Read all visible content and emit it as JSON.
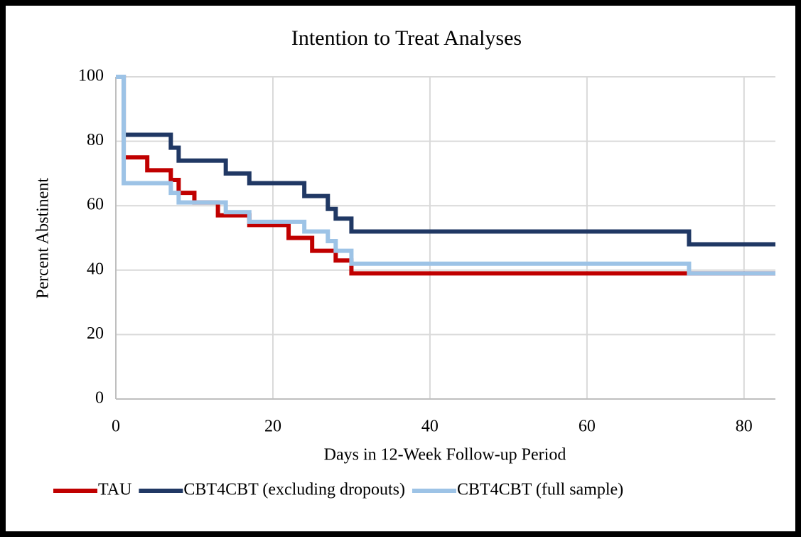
{
  "chart_data": {
    "type": "line",
    "step": "post",
    "title": "Intention to Treat Analyses",
    "x_label": "Days in 12-Week Follow-up Period",
    "y_label": "Percent Abstinent",
    "xlim": [
      0,
      84
    ],
    "xticks": [
      0,
      20,
      40,
      60,
      80
    ],
    "ylim": [
      0,
      100
    ],
    "yticks": [
      0,
      20,
      40,
      60,
      80,
      100
    ],
    "grid": true,
    "legend": "bottom",
    "series": [
      {
        "name": "TAU",
        "color": "#c00000",
        "x": [
          0,
          1,
          4,
          7,
          8,
          10,
          13,
          17,
          22,
          25,
          28,
          30,
          84
        ],
        "values": [
          100,
          75,
          71,
          68,
          64,
          61,
          57,
          54,
          50,
          46,
          43,
          39,
          39
        ]
      },
      {
        "name": "CBT4CBT (excluding dropouts)",
        "color": "#203864",
        "x": [
          0,
          1,
          7,
          8,
          14,
          17,
          24,
          27,
          28,
          30,
          73,
          84
        ],
        "values": [
          100,
          82,
          78,
          74,
          70,
          67,
          63,
          59,
          56,
          52,
          48,
          48
        ]
      },
      {
        "name": "CBT4CBT (full sample)",
        "color": "#9dc3e6",
        "x": [
          0,
          1,
          7,
          8,
          14,
          17,
          24,
          27,
          28,
          30,
          73,
          84
        ],
        "values": [
          100,
          67,
          64,
          61,
          58,
          55,
          52,
          49,
          46,
          42,
          39,
          39
        ]
      }
    ]
  }
}
